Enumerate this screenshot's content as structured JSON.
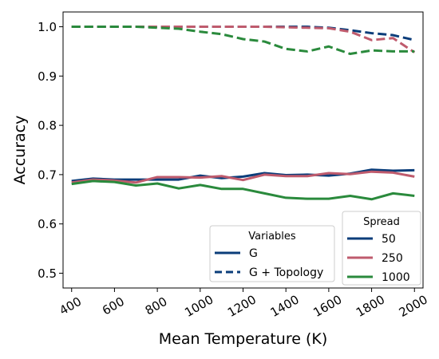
{
  "chart_data": {
    "type": "line",
    "xlabel": "Mean Temperature (K)",
    "ylabel": "Accuracy",
    "xlim": [
      360,
      2040
    ],
    "ylim": [
      0.47,
      1.03
    ],
    "xticks": [
      400,
      600,
      800,
      1000,
      1200,
      1400,
      1600,
      1800,
      2000
    ],
    "yticks": [
      0.5,
      0.6,
      0.7,
      0.8,
      0.9,
      1.0
    ],
    "x": [
      400,
      500,
      600,
      700,
      800,
      900,
      1000,
      1100,
      1200,
      1300,
      1400,
      1500,
      1600,
      1700,
      1800,
      1900,
      2000
    ],
    "grid": false,
    "legends": [
      {
        "title": "Variables",
        "placement": "lower-center",
        "entries": [
          {
            "label": "G",
            "style": "solid"
          },
          {
            "label": "G + Topology",
            "style": "dashed"
          }
        ]
      },
      {
        "title": "Spread",
        "placement": "lower-right",
        "entries": [
          {
            "label": "50",
            "color": "#0b3d7a"
          },
          {
            "label": "250",
            "color": "#bf5b6d"
          },
          {
            "label": "1000",
            "color": "#2a8a3c"
          }
        ]
      }
    ],
    "series": [
      {
        "spread": "50",
        "variables": "G",
        "style": "solid",
        "color": "#0b3d7a",
        "values": [
          0.687,
          0.692,
          0.69,
          0.69,
          0.69,
          0.69,
          0.698,
          0.693,
          0.696,
          0.703,
          0.699,
          0.7,
          0.698,
          0.702,
          0.71,
          0.708,
          0.709
        ]
      },
      {
        "spread": "250",
        "variables": "G",
        "style": "solid",
        "color": "#bf5b6d",
        "values": [
          0.684,
          0.69,
          0.688,
          0.684,
          0.695,
          0.695,
          0.694,
          0.697,
          0.689,
          0.7,
          0.697,
          0.697,
          0.703,
          0.701,
          0.706,
          0.704,
          0.696
        ]
      },
      {
        "spread": "1000",
        "variables": "G",
        "style": "solid",
        "color": "#2a8a3c",
        "values": [
          0.681,
          0.687,
          0.685,
          0.678,
          0.682,
          0.672,
          0.679,
          0.671,
          0.671,
          0.662,
          0.653,
          0.651,
          0.651,
          0.657,
          0.65,
          0.662,
          0.657
        ]
      },
      {
        "spread": "50",
        "variables": "G + Topology",
        "style": "dashed",
        "color": "#0b3d7a",
        "values": [
          1.0,
          1.0,
          1.0,
          1.0,
          1.0,
          1.0,
          1.0,
          1.0,
          1.0,
          1.0,
          1.0,
          1.0,
          0.998,
          0.993,
          0.987,
          0.983,
          0.973
        ]
      },
      {
        "spread": "250",
        "variables": "G + Topology",
        "style": "dashed",
        "color": "#bf5b6d",
        "values": [
          1.0,
          1.0,
          1.0,
          1.0,
          1.0,
          1.0,
          1.0,
          1.0,
          1.0,
          1.0,
          0.999,
          0.998,
          0.997,
          0.99,
          0.973,
          0.977,
          0.948
        ]
      },
      {
        "spread": "1000",
        "variables": "G + Topology",
        "style": "dashed",
        "color": "#2a8a3c",
        "values": [
          1.0,
          1.0,
          1.0,
          1.0,
          0.998,
          0.996,
          0.99,
          0.985,
          0.975,
          0.97,
          0.955,
          0.95,
          0.96,
          0.945,
          0.952,
          0.95,
          0.95
        ]
      }
    ]
  }
}
